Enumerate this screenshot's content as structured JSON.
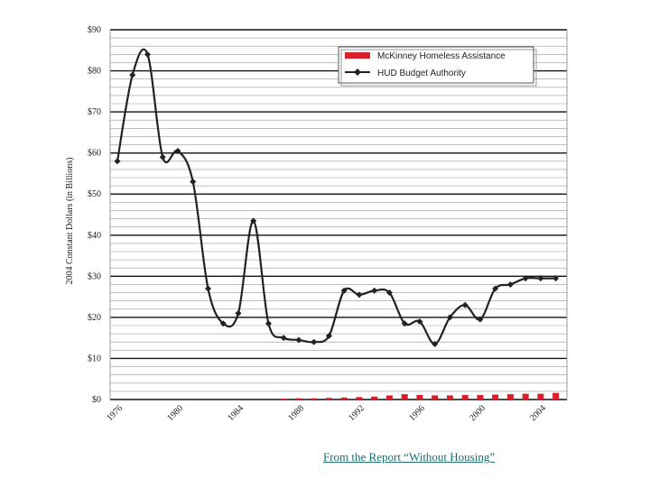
{
  "chart_data": {
    "type": "line",
    "ylabel": "2004 Constant Dollars (in Billions)",
    "ylim": [
      0,
      90
    ],
    "y_ticks": [
      "$0",
      "$10",
      "$20",
      "$30",
      "$40",
      "$50",
      "$60",
      "$70",
      "$80",
      "$90"
    ],
    "y_tick_values": [
      0,
      10,
      20,
      30,
      40,
      50,
      60,
      70,
      80,
      90
    ],
    "xlim": [
      1976,
      2005
    ],
    "x_ticks": [
      "1976",
      "1980",
      "1984",
      "1988",
      "1992",
      "1996",
      "2000",
      "2004"
    ],
    "x_tick_values": [
      1976,
      1980,
      1984,
      1988,
      1992,
      1996,
      2000,
      2004
    ],
    "grid": true,
    "legend_position": "top-right",
    "colors": {
      "line": "#222222",
      "bars": "#d8202a",
      "grid": "#333333"
    },
    "series": [
      {
        "name": "McKinney Homeless Assistance",
        "kind": "bar",
        "x": [
          1987,
          1988,
          1989,
          1990,
          1991,
          1992,
          1993,
          1994,
          1995,
          1996,
          1997,
          1998,
          1999,
          2000,
          2001,
          2002,
          2003,
          2004,
          2005
        ],
        "values": [
          0.2,
          0.3,
          0.3,
          0.4,
          0.5,
          0.6,
          0.7,
          1.0,
          1.3,
          1.1,
          1.0,
          1.0,
          1.1,
          1.1,
          1.2,
          1.3,
          1.4,
          1.4,
          1.6
        ]
      },
      {
        "name": "HUD Budget Authority",
        "kind": "line",
        "x": [
          1976,
          1977,
          1978,
          1979,
          1980,
          1981,
          1982,
          1983,
          1984,
          1985,
          1986,
          1987,
          1988,
          1989,
          1990,
          1991,
          1992,
          1993,
          1994,
          1995,
          1996,
          1997,
          1998,
          1999,
          2000,
          2001,
          2002,
          2003,
          2004,
          2005
        ],
        "values": [
          58,
          79,
          84,
          59,
          60.5,
          53,
          27,
          18.5,
          21,
          43.5,
          18.5,
          15,
          14.5,
          14,
          15.5,
          26.5,
          25.5,
          26.5,
          26,
          18.5,
          19,
          13.5,
          20,
          23,
          19.5,
          27,
          28,
          29.5,
          29.5,
          29.5
        ]
      }
    ]
  },
  "caption": "From the Report “Without Housing”"
}
